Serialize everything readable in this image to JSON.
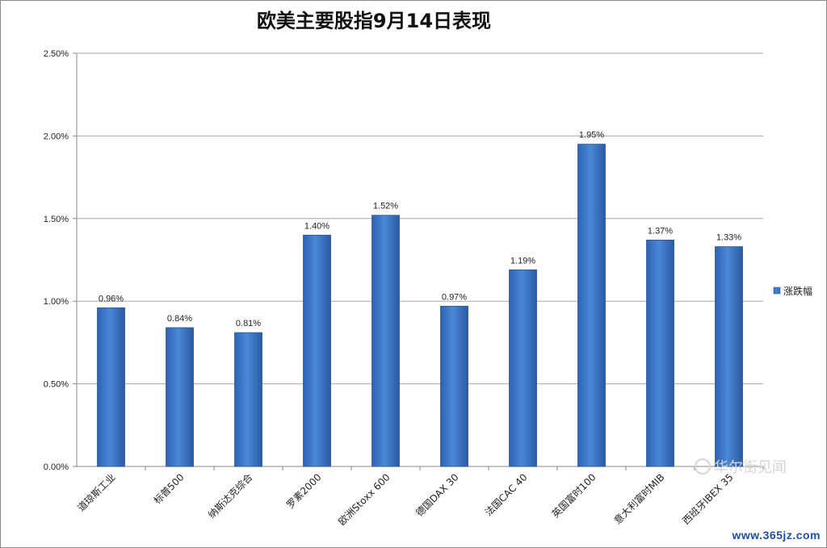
{
  "chart_data": {
    "type": "bar",
    "title": "欧美主要股指9月14日表现",
    "categories": [
      "道琼斯工业",
      "标普500",
      "纳斯达克综合",
      "罗素2000",
      "欧洲Stoxx 600",
      "德国DAX 30",
      "法国CAC 40",
      "英国富时100",
      "意大利富时MIB",
      "西班牙IBEX 35"
    ],
    "series": [
      {
        "name": "涨跌幅",
        "values": [
          0.96,
          0.84,
          0.81,
          1.4,
          1.52,
          0.97,
          1.19,
          1.95,
          1.37,
          1.33
        ],
        "color": "#3f7bc8"
      }
    ],
    "data_labels": [
      "0.96%",
      "0.84%",
      "0.81%",
      "1.40%",
      "1.52%",
      "0.97%",
      "1.19%",
      "1.95%",
      "1.37%",
      "1.33%"
    ],
    "y_ticks": [
      "0.00%",
      "0.50%",
      "1.00%",
      "1.50%",
      "2.00%",
      "2.50%"
    ],
    "ylim": [
      0,
      2.5
    ],
    "grid": true,
    "legend": "right"
  },
  "watermark": {
    "text": "华尔街见闻",
    "url": "www.365jz.com"
  }
}
